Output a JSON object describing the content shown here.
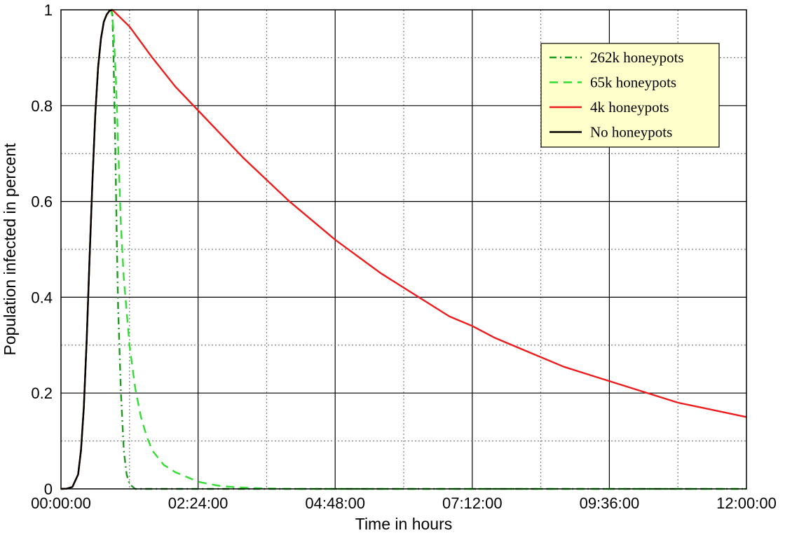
{
  "chart_data": {
    "type": "line",
    "title": "",
    "xlabel": "Time in hours",
    "ylabel": "Population infected in percent",
    "x_units": "hours",
    "xlim": [
      0,
      12
    ],
    "ylim": [
      0,
      1
    ],
    "x_ticks": [
      {
        "value": 0,
        "label": "00:00:00"
      },
      {
        "value": 2.4,
        "label": "02:24:00"
      },
      {
        "value": 4.8,
        "label": "04:48:00"
      },
      {
        "value": 7.2,
        "label": "07:12:00"
      },
      {
        "value": 9.6,
        "label": "09:36:00"
      },
      {
        "value": 12,
        "label": "12:00:00"
      }
    ],
    "y_ticks": [
      {
        "value": 0,
        "label": "0"
      },
      {
        "value": 0.2,
        "label": "0.2"
      },
      {
        "value": 0.4,
        "label": "0.4"
      },
      {
        "value": 0.6,
        "label": "0.6"
      },
      {
        "value": 0.8,
        "label": "0.8"
      },
      {
        "value": 1,
        "label": "1"
      }
    ],
    "grid": true,
    "legend_position": "top-right",
    "series": [
      {
        "name": "262k honeypots",
        "color": "#1f9a1f",
        "dash": "dash-dot",
        "points": [
          [
            0,
            0
          ],
          [
            0.1,
            0.0005
          ],
          [
            0.2,
            0.004
          ],
          [
            0.3,
            0.03
          ],
          [
            0.35,
            0.08
          ],
          [
            0.4,
            0.17
          ],
          [
            0.45,
            0.31
          ],
          [
            0.5,
            0.48
          ],
          [
            0.55,
            0.64
          ],
          [
            0.6,
            0.78
          ],
          [
            0.65,
            0.88
          ],
          [
            0.7,
            0.94
          ],
          [
            0.75,
            0.975
          ],
          [
            0.8,
            0.99
          ],
          [
            0.85,
            0.998
          ],
          [
            0.88,
            1.0
          ],
          [
            0.9,
            0.99
          ],
          [
            0.92,
            0.9
          ],
          [
            0.95,
            0.72
          ],
          [
            0.98,
            0.5
          ],
          [
            1.0,
            0.38
          ],
          [
            1.05,
            0.2
          ],
          [
            1.1,
            0.08
          ],
          [
            1.15,
            0.03
          ],
          [
            1.2,
            0.01
          ],
          [
            1.3,
            0.0
          ],
          [
            12,
            0.0
          ]
        ]
      },
      {
        "name": "65k honeypots",
        "color": "#33dd33",
        "dash": "dashed",
        "points": [
          [
            0,
            0
          ],
          [
            0.1,
            0.0005
          ],
          [
            0.2,
            0.004
          ],
          [
            0.3,
            0.03
          ],
          [
            0.35,
            0.08
          ],
          [
            0.4,
            0.17
          ],
          [
            0.45,
            0.31
          ],
          [
            0.5,
            0.48
          ],
          [
            0.55,
            0.64
          ],
          [
            0.6,
            0.78
          ],
          [
            0.65,
            0.88
          ],
          [
            0.7,
            0.94
          ],
          [
            0.75,
            0.975
          ],
          [
            0.8,
            0.99
          ],
          [
            0.85,
            0.998
          ],
          [
            0.88,
            1.0
          ],
          [
            0.92,
            0.96
          ],
          [
            0.96,
            0.86
          ],
          [
            1.0,
            0.72
          ],
          [
            1.05,
            0.55
          ],
          [
            1.1,
            0.44
          ],
          [
            1.2,
            0.3
          ],
          [
            1.3,
            0.21
          ],
          [
            1.4,
            0.15
          ],
          [
            1.5,
            0.11
          ],
          [
            1.6,
            0.08
          ],
          [
            1.8,
            0.05
          ],
          [
            2.0,
            0.035
          ],
          [
            2.2,
            0.025
          ],
          [
            2.4,
            0.015
          ],
          [
            2.6,
            0.01
          ],
          [
            2.8,
            0.006
          ],
          [
            3.0,
            0.004
          ],
          [
            3.3,
            0.002
          ],
          [
            3.6,
            0.001
          ],
          [
            4.0,
            0.0
          ],
          [
            12,
            0.0
          ]
        ]
      },
      {
        "name": "4k honeypots",
        "color": "#ee1c1c",
        "dash": "solid",
        "points": [
          [
            0,
            0
          ],
          [
            0.1,
            0.0005
          ],
          [
            0.2,
            0.004
          ],
          [
            0.3,
            0.03
          ],
          [
            0.35,
            0.08
          ],
          [
            0.4,
            0.17
          ],
          [
            0.45,
            0.31
          ],
          [
            0.5,
            0.48
          ],
          [
            0.55,
            0.64
          ],
          [
            0.6,
            0.78
          ],
          [
            0.65,
            0.88
          ],
          [
            0.7,
            0.94
          ],
          [
            0.75,
            0.975
          ],
          [
            0.8,
            0.99
          ],
          [
            0.85,
            0.998
          ],
          [
            0.9,
            1.0
          ],
          [
            1.2,
            0.965
          ],
          [
            1.6,
            0.9
          ],
          [
            2.0,
            0.84
          ],
          [
            2.4,
            0.79
          ],
          [
            2.8,
            0.74
          ],
          [
            3.2,
            0.69
          ],
          [
            3.6,
            0.645
          ],
          [
            4.0,
            0.6
          ],
          [
            4.4,
            0.56
          ],
          [
            4.8,
            0.52
          ],
          [
            5.2,
            0.485
          ],
          [
            5.6,
            0.45
          ],
          [
            6.0,
            0.42
          ],
          [
            6.4,
            0.39
          ],
          [
            6.8,
            0.36
          ],
          [
            7.2,
            0.34
          ],
          [
            7.6,
            0.315
          ],
          [
            8.0,
            0.295
          ],
          [
            8.4,
            0.275
          ],
          [
            8.8,
            0.255
          ],
          [
            9.2,
            0.24
          ],
          [
            9.6,
            0.225
          ],
          [
            10.0,
            0.21
          ],
          [
            10.4,
            0.195
          ],
          [
            10.8,
            0.18
          ],
          [
            11.2,
            0.17
          ],
          [
            11.6,
            0.16
          ],
          [
            12.0,
            0.15
          ]
        ]
      },
      {
        "name": "No honeypots",
        "color": "#000000",
        "dash": "solid",
        "points": [
          [
            0,
            0
          ],
          [
            0.1,
            0.0005
          ],
          [
            0.2,
            0.004
          ],
          [
            0.3,
            0.03
          ],
          [
            0.35,
            0.08
          ],
          [
            0.4,
            0.17
          ],
          [
            0.45,
            0.31
          ],
          [
            0.5,
            0.48
          ],
          [
            0.55,
            0.64
          ],
          [
            0.6,
            0.78
          ],
          [
            0.65,
            0.88
          ],
          [
            0.7,
            0.94
          ],
          [
            0.75,
            0.975
          ],
          [
            0.8,
            0.99
          ],
          [
            0.85,
            0.998
          ],
          [
            0.9,
            1.0
          ]
        ]
      }
    ]
  }
}
